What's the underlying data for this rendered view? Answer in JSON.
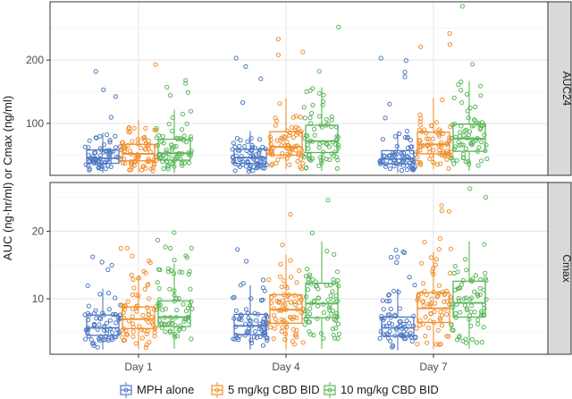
{
  "chart_data": {
    "type": "box-with-jitter",
    "ylabel": "AUC (ng·hr/ml) or Cmax (ng/ml)",
    "xlabel": "",
    "categories": [
      "Day 1",
      "Day 4",
      "Day 7"
    ],
    "series": [
      {
        "name": "MPH alone",
        "color": "#4E79C4"
      },
      {
        "name": "5 mg/kg CBD BID",
        "color": "#F28E2B"
      },
      {
        "name": "10 mg/kg CBD BID",
        "color": "#59B759"
      }
    ],
    "legend_position": "bottom",
    "panels": [
      {
        "name": "AUC24",
        "ylim": [
          18,
          292
        ],
        "yticks": [
          100,
          200
        ],
        "ytick_labels": [
          "100",
          "200"
        ],
        "boxes": [
          {
            "category": "Day 1",
            "series": "MPH alone",
            "q1": 37,
            "median": 45,
            "q3": 58,
            "lower": 22,
            "upper": 85,
            "max": 182
          },
          {
            "category": "Day 1",
            "series": "5 mg/kg CBD BID",
            "q1": 41,
            "median": 52,
            "q3": 67,
            "lower": 22,
            "upper": 105,
            "max": 193
          },
          {
            "category": "Day 1",
            "series": "10 mg/kg CBD BID",
            "q1": 42,
            "median": 53,
            "q3": 75,
            "lower": 22,
            "upper": 122,
            "max": 168
          },
          {
            "category": "Day 4",
            "series": "MPH alone",
            "q1": 37,
            "median": 46,
            "q3": 59,
            "lower": 22,
            "upper": 88,
            "max": 203
          },
          {
            "category": "Day 4",
            "series": "5 mg/kg CBD BID",
            "q1": 50,
            "median": 63,
            "q3": 87,
            "lower": 28,
            "upper": 140,
            "max": 233
          },
          {
            "category": "Day 4",
            "series": "10 mg/kg CBD BID",
            "q1": 54,
            "median": 72,
            "q3": 97,
            "lower": 25,
            "upper": 157,
            "max": 252
          },
          {
            "category": "Day 7",
            "series": "MPH alone",
            "q1": 36,
            "median": 44,
            "q3": 57,
            "lower": 22,
            "upper": 87,
            "max": 203
          },
          {
            "category": "Day 7",
            "series": "5 mg/kg CBD BID",
            "q1": 52,
            "median": 67,
            "q3": 86,
            "lower": 28,
            "upper": 140,
            "max": 242
          },
          {
            "category": "Day 7",
            "series": "10 mg/kg CBD BID",
            "q1": 56,
            "median": 76,
            "q3": 99,
            "lower": 25,
            "upper": 167,
            "max": 285
          }
        ]
      },
      {
        "name": "Cmax",
        "ylim": [
          1.8,
          27.2
        ],
        "yticks": [
          10,
          20
        ],
        "ytick_labels": [
          "10",
          "20"
        ],
        "boxes": [
          {
            "category": "Day 1",
            "series": "MPH alone",
            "q1": 4.6,
            "median": 5.7,
            "q3": 7.6,
            "lower": 2.5,
            "upper": 11.5,
            "max": 16.2
          },
          {
            "category": "Day 1",
            "series": "5 mg/kg CBD BID",
            "q1": 5.6,
            "median": 7.0,
            "q3": 8.8,
            "lower": 2.6,
            "upper": 13.5,
            "max": 17.5
          },
          {
            "category": "Day 1",
            "series": "10 mg/kg CBD BID",
            "q1": 5.9,
            "median": 7.3,
            "q3": 9.7,
            "lower": 2.6,
            "upper": 15.2,
            "max": 19.8
          },
          {
            "category": "Day 4",
            "series": "MPH alone",
            "q1": 4.7,
            "median": 6.0,
            "q3": 7.7,
            "lower": 2.5,
            "upper": 12.0,
            "max": 17.3
          },
          {
            "category": "Day 4",
            "series": "5 mg/kg CBD BID",
            "q1": 6.4,
            "median": 8.4,
            "q3": 10.6,
            "lower": 2.6,
            "upper": 16.5,
            "max": 22.5
          },
          {
            "category": "Day 4",
            "series": "10 mg/kg CBD BID",
            "q1": 7.2,
            "median": 9.3,
            "q3": 12.3,
            "lower": 2.6,
            "upper": 18.5,
            "max": 24.6
          },
          {
            "category": "Day 7",
            "series": "MPH alone",
            "q1": 4.5,
            "median": 5.7,
            "q3": 7.3,
            "lower": 2.4,
            "upper": 11.5,
            "max": 17.2
          },
          {
            "category": "Day 7",
            "series": "5 mg/kg CBD BID",
            "q1": 6.5,
            "median": 8.6,
            "q3": 10.9,
            "lower": 2.6,
            "upper": 17.0,
            "max": 23.8
          },
          {
            "category": "Day 7",
            "series": "10 mg/kg CBD BID",
            "q1": 7.3,
            "median": 9.4,
            "q3": 12.6,
            "lower": 2.6,
            "upper": 18.5,
            "max": 26.3
          }
        ]
      }
    ]
  }
}
